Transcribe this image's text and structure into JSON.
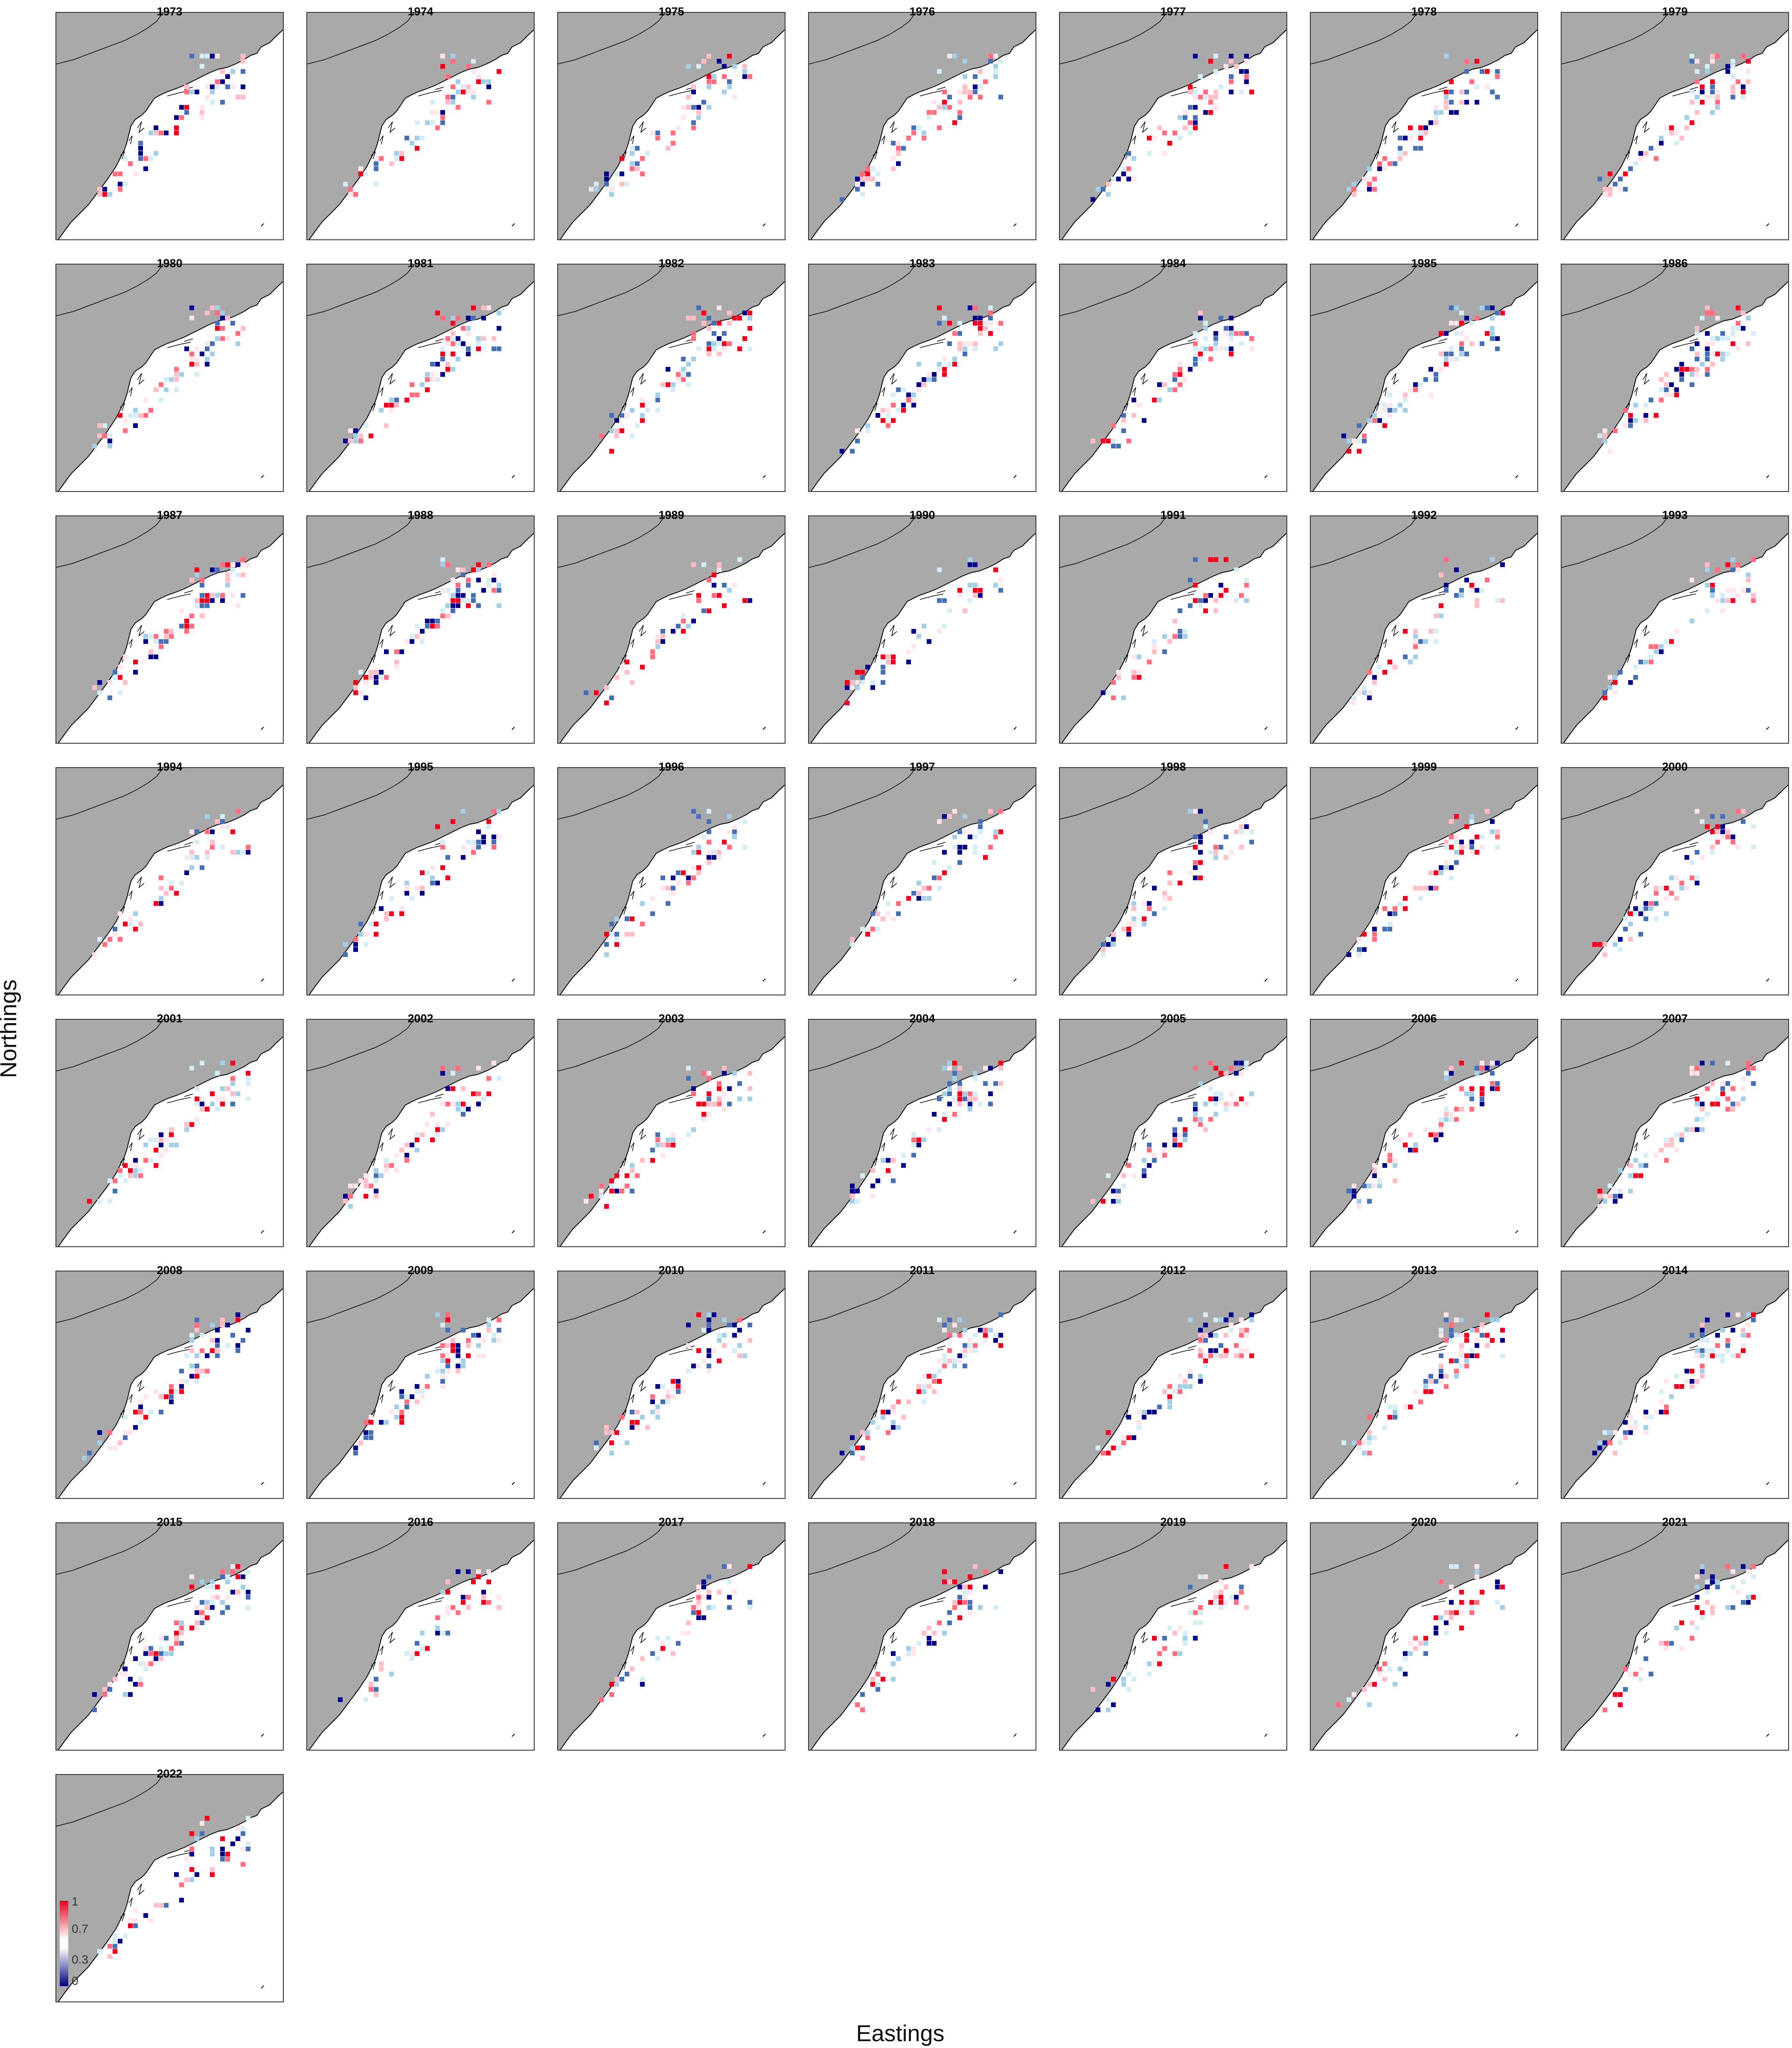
{
  "axes": {
    "xlabel": "Eastings",
    "ylabel": "Northings"
  },
  "legend": {
    "ticks": [
      "1",
      "0.7",
      "0.3",
      "0"
    ]
  },
  "colors": {
    "land": "#a9a9a9",
    "high": "#e8001c",
    "low": "#000080",
    "coast": "#000000"
  },
  "panels": [
    {
      "year": "1973"
    },
    {
      "year": "1974"
    },
    {
      "year": "1975"
    },
    {
      "year": "1976"
    },
    {
      "year": "1977"
    },
    {
      "year": "1978"
    },
    {
      "year": "1979"
    },
    {
      "year": "1980"
    },
    {
      "year": "1981"
    },
    {
      "year": "1982"
    },
    {
      "year": "1983"
    },
    {
      "year": "1984"
    },
    {
      "year": "1985"
    },
    {
      "year": "1986"
    },
    {
      "year": "1987"
    },
    {
      "year": "1988"
    },
    {
      "year": "1989"
    },
    {
      "year": "1990"
    },
    {
      "year": "1991"
    },
    {
      "year": "1992"
    },
    {
      "year": "1993"
    },
    {
      "year": "1994"
    },
    {
      "year": "1995"
    },
    {
      "year": "1996"
    },
    {
      "year": "1997"
    },
    {
      "year": "1998"
    },
    {
      "year": "1999"
    },
    {
      "year": "2000"
    },
    {
      "year": "2001"
    },
    {
      "year": "2002"
    },
    {
      "year": "2003"
    },
    {
      "year": "2004"
    },
    {
      "year": "2005"
    },
    {
      "year": "2006"
    },
    {
      "year": "2007"
    },
    {
      "year": "2008"
    },
    {
      "year": "2009"
    },
    {
      "year": "2010"
    },
    {
      "year": "2011"
    },
    {
      "year": "2012"
    },
    {
      "year": "2013"
    },
    {
      "year": "2014"
    },
    {
      "year": "2015"
    },
    {
      "year": "2016"
    },
    {
      "year": "2017"
    },
    {
      "year": "2018"
    },
    {
      "year": "2019"
    },
    {
      "year": "2020"
    },
    {
      "year": "2021"
    },
    {
      "year": "2022"
    }
  ]
}
